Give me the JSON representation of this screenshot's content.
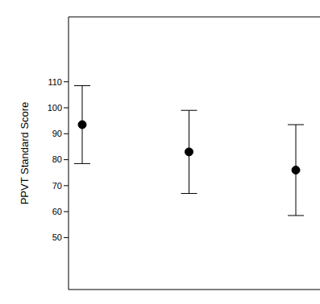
{
  "chart_data": {
    "type": "scatter",
    "categories": [
      null,
      null,
      null
    ],
    "values": [
      93.5,
      83,
      76
    ],
    "error": [
      15,
      16,
      17.5
    ],
    "color": "#000000",
    "marker": "circle",
    "y_label": "PPVT Standard Score",
    "ylim": [
      30,
      135
    ],
    "yticks": [
      50,
      60,
      70,
      80,
      90,
      100,
      110
    ],
    "tick_labels": "y"
  }
}
